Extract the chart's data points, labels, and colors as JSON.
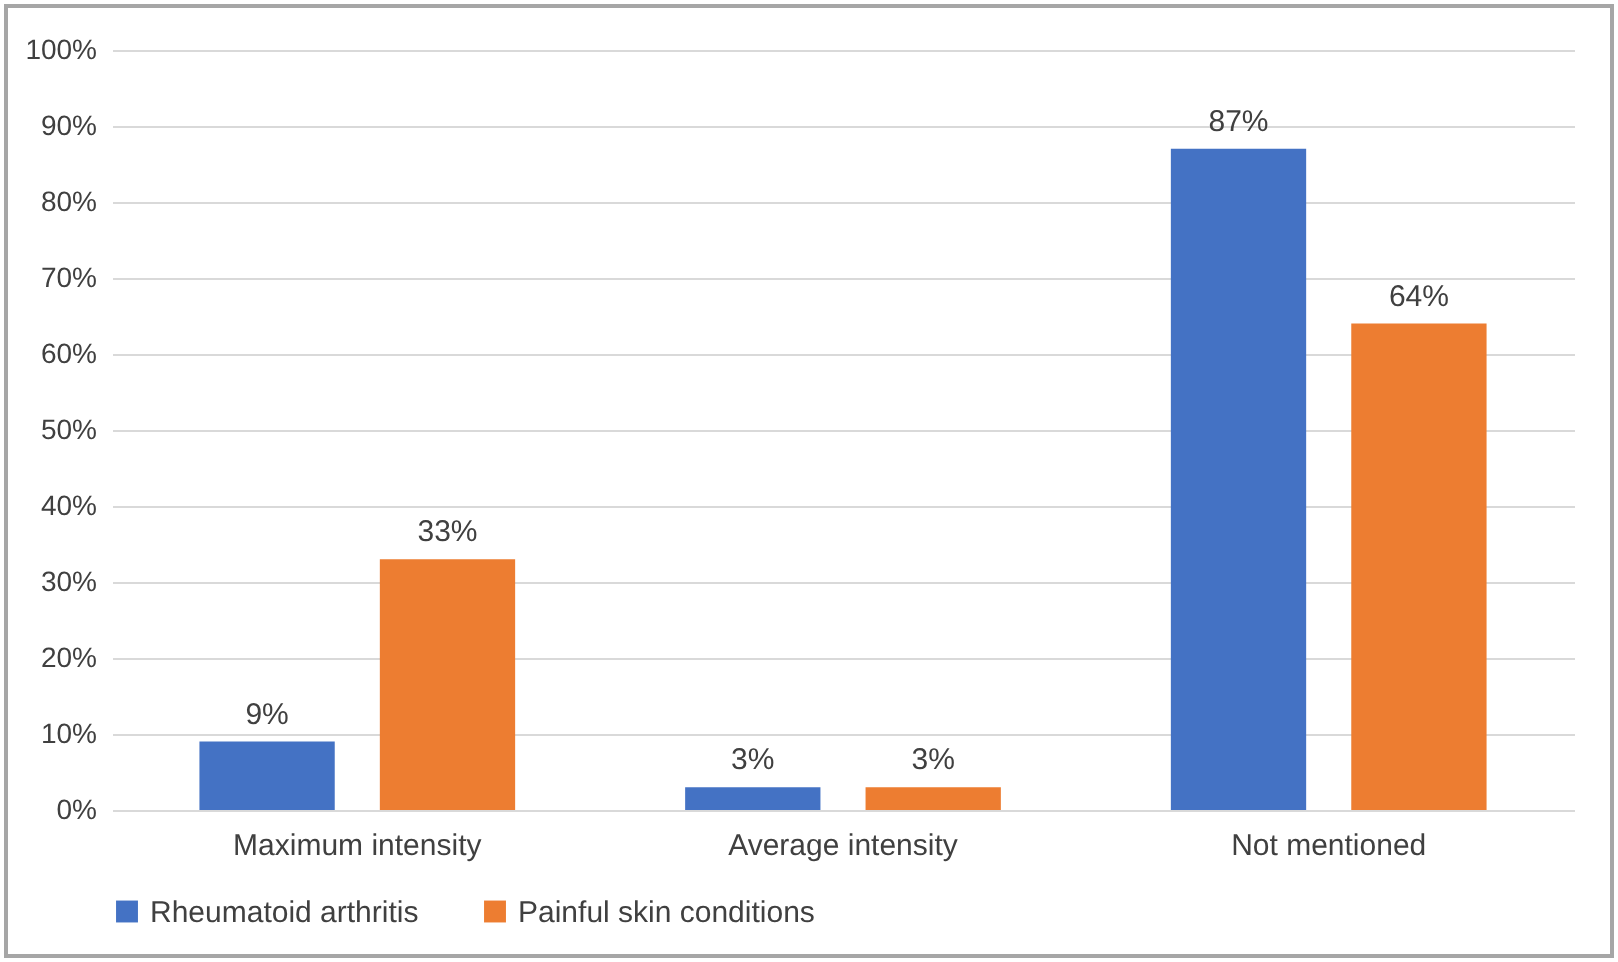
{
  "chart_data": {
    "type": "bar",
    "categories": [
      "Maximum intensity",
      "Average intensity",
      "Not mentioned"
    ],
    "series": [
      {
        "name": "Rheumatoid arthritis",
        "color": "#4472c4",
        "values": [
          9,
          3,
          87
        ],
        "value_labels": [
          "9%",
          "3%",
          "87%"
        ]
      },
      {
        "name": "Painful skin conditions",
        "color": "#ed7d31",
        "values": [
          33,
          3,
          64
        ],
        "value_labels": [
          "33%",
          "3%",
          "64%"
        ]
      }
    ],
    "ylim": [
      0,
      100
    ],
    "yticks": [
      {
        "value": 0,
        "label": "0%"
      },
      {
        "value": 10,
        "label": "10%"
      },
      {
        "value": 20,
        "label": "20%"
      },
      {
        "value": 30,
        "label": "30%"
      },
      {
        "value": 40,
        "label": "40%"
      },
      {
        "value": 50,
        "label": "50%"
      },
      {
        "value": 60,
        "label": "60%"
      },
      {
        "value": 70,
        "label": "70%"
      },
      {
        "value": 80,
        "label": "80%"
      },
      {
        "value": 90,
        "label": "90%"
      },
      {
        "value": 100,
        "label": "100%"
      }
    ],
    "grid": "y",
    "legend": "bottom"
  }
}
